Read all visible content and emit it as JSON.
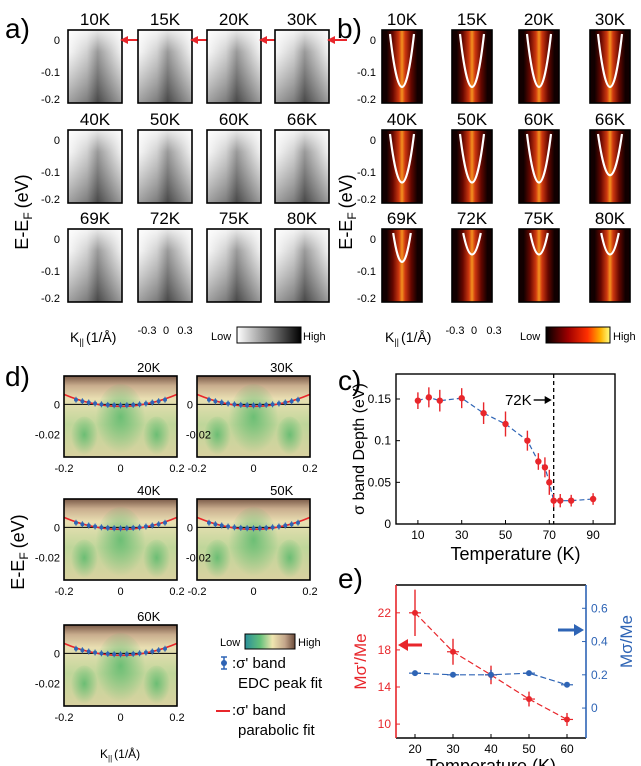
{
  "panel_letters": {
    "a": "a)",
    "b": "b)",
    "c": "c)",
    "d": "d)",
    "e": "e)"
  },
  "panel_a": {
    "temperatures": [
      "10K",
      "15K",
      "20K",
      "30K",
      "40K",
      "50K",
      "60K",
      "66K",
      "69K",
      "72K",
      "75K",
      "80K"
    ],
    "y_ticks": [
      "0",
      "-0.1",
      "-0.2"
    ],
    "x_ticks": [
      "-0.3",
      "0",
      "0.3"
    ],
    "xlabel": "K",
    "xlabel_sub": "||",
    "xlabel_unit": "(1/Å)",
    "ylabel": "E-E",
    "ylabel_sub": "F",
    "ylabel_unit": "(eV)",
    "colorbar_low": "Low",
    "colorbar_high": "High",
    "arrow_color": "#e8262b"
  },
  "panel_b": {
    "temperatures": [
      "10K",
      "15K",
      "20K",
      "30K",
      "40K",
      "50K",
      "60K",
      "66K",
      "69K",
      "72K",
      "75K",
      "80K"
    ],
    "y_ticks": [
      "0",
      "-0.1",
      "-0.2"
    ],
    "x_ticks": [
      "-0.3",
      "0",
      "0.3"
    ],
    "xlabel": "K",
    "xlabel_sub": "||",
    "xlabel_unit": "(1/Å)",
    "ylabel": "E-E",
    "ylabel_sub": "F",
    "ylabel_unit": "(eV)",
    "colorbar_low": "Low",
    "colorbar_high": "High"
  },
  "panel_d": {
    "temperatures": [
      "20K",
      "30K",
      "40K",
      "50K",
      "60K"
    ],
    "y_ticks": [
      "0",
      "-0.02"
    ],
    "x_ticks": [
      "-0.2",
      "0",
      "0.2"
    ],
    "xlabel": "K",
    "xlabel_sub": "||",
    "xlabel_unit": "(1/Å)",
    "ylabel": "E-E",
    "ylabel_sub": "F",
    "ylabel_unit": "(eV)",
    "colorbar_low": "Low",
    "colorbar_high": "High",
    "legend": [
      {
        "text": ":σ' band",
        "text2": "EDC peak fit",
        "color": "#2e64b5"
      },
      {
        "text": ":σ' band",
        "text2": "parabolic fit",
        "color": "#e8262b"
      }
    ]
  },
  "chart_data": [
    {
      "type": "scatter",
      "panel": "c",
      "xlabel": "Temperature (K)",
      "ylabel": "σ band Depth (eV)",
      "annotation": "72K",
      "x_ticks": [
        "10",
        "30",
        "50",
        "70",
        "90"
      ],
      "y_ticks": [
        "0",
        "0.05",
        "0.1",
        "0.15"
      ],
      "xlim": [
        0,
        100
      ],
      "ylim": [
        0,
        0.18
      ],
      "vline": 72,
      "color": "#e8262b",
      "fit_color": "#2e64b5",
      "x": [
        10,
        15,
        20,
        30,
        40,
        50,
        60,
        65,
        68,
        70,
        72,
        75,
        80,
        90
      ],
      "y": [
        0.148,
        0.152,
        0.148,
        0.151,
        0.133,
        0.12,
        0.1,
        0.075,
        0.068,
        0.05,
        0.028,
        0.028,
        0.028,
        0.03
      ],
      "err": [
        0.01,
        0.012,
        0.013,
        0.012,
        0.013,
        0.015,
        0.012,
        0.01,
        0.012,
        0.015,
        0.008,
        0.008,
        0.007,
        0.007
      ]
    },
    {
      "type": "scatter",
      "panel": "e",
      "xlabel": "Temperature (K)",
      "ylabel_left": "Mσ'/Me",
      "ylabel_right": "Mσ/Me",
      "x_ticks": [
        "20",
        "30",
        "40",
        "50",
        "60"
      ],
      "yleft_ticks": [
        "10",
        "14",
        "18",
        "22"
      ],
      "yright_ticks": [
        "0",
        "0.2",
        "0.4",
        "0.6"
      ],
      "xlim": [
        15,
        65
      ],
      "ylim_left": [
        8.5,
        25
      ],
      "ylim_right": [
        -0.18,
        0.74
      ],
      "series": [
        {
          "color": "#e8262b",
          "axis": "left",
          "x": [
            20,
            30,
            40,
            50,
            60
          ],
          "y": [
            22.0,
            17.8,
            15.3,
            12.7,
            10.5
          ],
          "err": [
            2.5,
            1.4,
            1.0,
            0.8,
            0.7
          ]
        },
        {
          "color": "#2e64b5",
          "axis": "right",
          "x": [
            20,
            30,
            40,
            50,
            60
          ],
          "y": [
            0.21,
            0.2,
            0.2,
            0.21,
            0.14
          ],
          "err": [
            0.0,
            0.0,
            0.03,
            0.0,
            0.0
          ]
        }
      ]
    }
  ]
}
